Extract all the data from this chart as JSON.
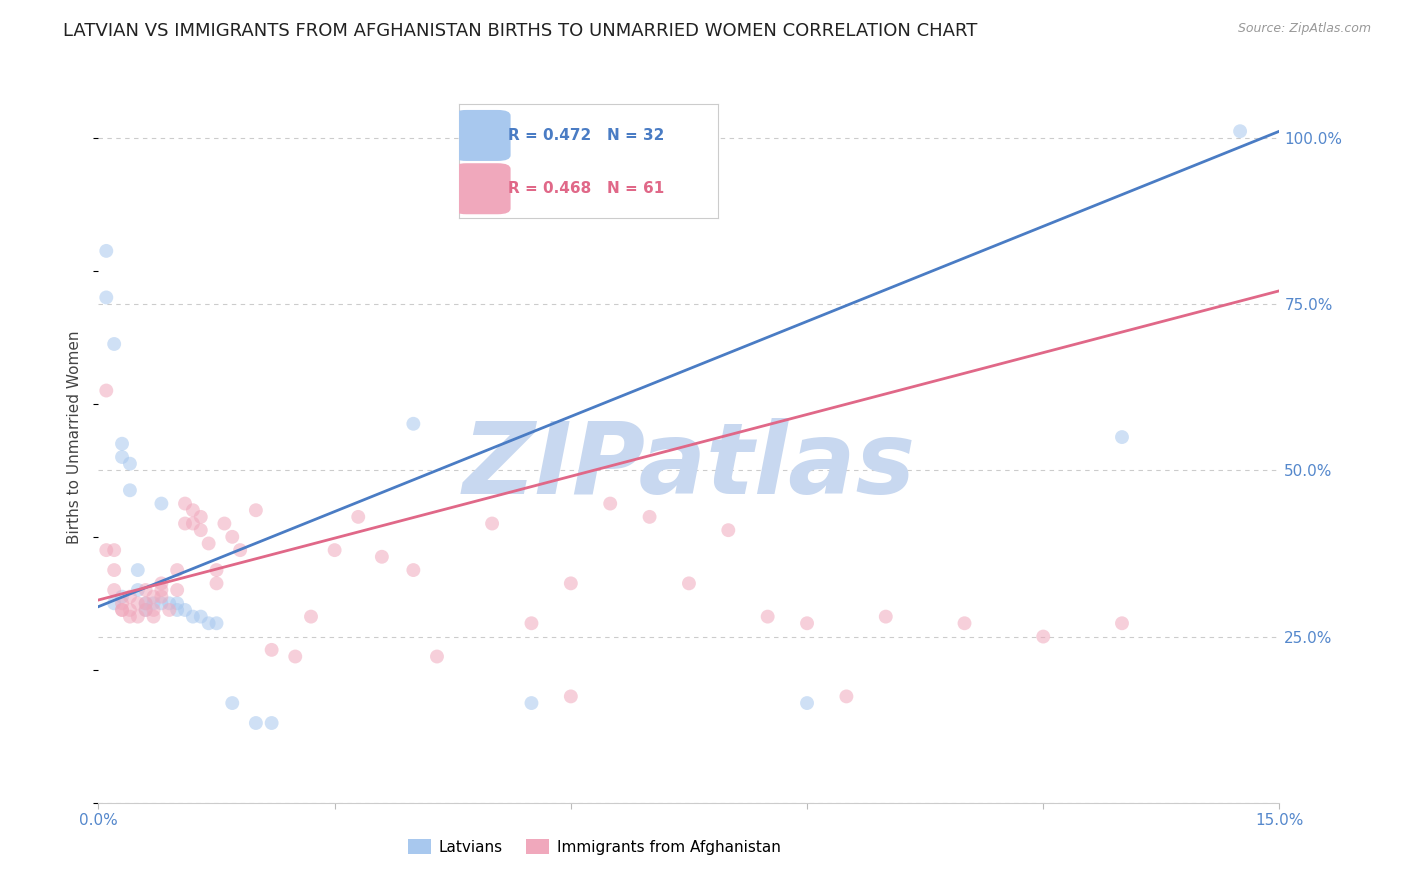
{
  "title": "LATVIAN VS IMMIGRANTS FROM AFGHANISTAN BIRTHS TO UNMARRIED WOMEN CORRELATION CHART",
  "source": "Source: ZipAtlas.com",
  "ylabel": "Births to Unmarried Women",
  "xlim": [
    0.0,
    0.15
  ],
  "ylim": [
    0.0,
    1.1
  ],
  "yticks": [
    0.0,
    0.25,
    0.5,
    0.75,
    1.0
  ],
  "ytick_labels": [
    "",
    "25.0%",
    "50.0%",
    "75.0%",
    "100.0%"
  ],
  "xticks": [
    0.0,
    0.03,
    0.06,
    0.09,
    0.12,
    0.15
  ],
  "xtick_labels": [
    "0.0%",
    "",
    "",
    "",
    "",
    "15.0%"
  ],
  "blue_R": 0.472,
  "blue_N": 32,
  "pink_R": 0.468,
  "pink_N": 61,
  "blue_color": "#A8C8EE",
  "pink_color": "#F0A8BC",
  "blue_line_color": "#4A7CC4",
  "pink_line_color": "#E06888",
  "watermark": "ZIPatlas",
  "watermark_color": "#C8D8F0",
  "legend_label_blue": "Latvians",
  "legend_label_pink": "Immigrants from Afghanistan",
  "blue_points_x": [
    0.001,
    0.001,
    0.002,
    0.003,
    0.003,
    0.004,
    0.005,
    0.005,
    0.006,
    0.007,
    0.008,
    0.009,
    0.01,
    0.01,
    0.011,
    0.012,
    0.013,
    0.014,
    0.015,
    0.017,
    0.02,
    0.022,
    0.04,
    0.055,
    0.09,
    0.13,
    0.145,
    0.002,
    0.003,
    0.004,
    0.006,
    0.008
  ],
  "blue_points_y": [
    0.83,
    0.76,
    0.69,
    0.54,
    0.52,
    0.47,
    0.35,
    0.32,
    0.3,
    0.3,
    0.3,
    0.3,
    0.3,
    0.29,
    0.29,
    0.28,
    0.28,
    0.27,
    0.27,
    0.15,
    0.12,
    0.12,
    0.57,
    0.15,
    0.15,
    0.55,
    1.01,
    0.3,
    0.31,
    0.51,
    0.29,
    0.45
  ],
  "pink_points_x": [
    0.001,
    0.001,
    0.002,
    0.002,
    0.003,
    0.003,
    0.004,
    0.004,
    0.005,
    0.005,
    0.006,
    0.006,
    0.007,
    0.007,
    0.008,
    0.008,
    0.009,
    0.01,
    0.01,
    0.011,
    0.011,
    0.012,
    0.012,
    0.013,
    0.013,
    0.014,
    0.015,
    0.015,
    0.016,
    0.017,
    0.018,
    0.02,
    0.022,
    0.025,
    0.027,
    0.03,
    0.033,
    0.036,
    0.04,
    0.043,
    0.05,
    0.055,
    0.06,
    0.065,
    0.07,
    0.075,
    0.08,
    0.085,
    0.09,
    0.095,
    0.1,
    0.11,
    0.12,
    0.13,
    0.002,
    0.003,
    0.004,
    0.006,
    0.007,
    0.008,
    0.06
  ],
  "pink_points_y": [
    0.62,
    0.38,
    0.35,
    0.32,
    0.3,
    0.29,
    0.29,
    0.28,
    0.3,
    0.28,
    0.32,
    0.3,
    0.31,
    0.29,
    0.33,
    0.31,
    0.29,
    0.35,
    0.32,
    0.45,
    0.42,
    0.44,
    0.42,
    0.43,
    0.41,
    0.39,
    0.35,
    0.33,
    0.42,
    0.4,
    0.38,
    0.44,
    0.23,
    0.22,
    0.28,
    0.38,
    0.43,
    0.37,
    0.35,
    0.22,
    0.42,
    0.27,
    0.33,
    0.45,
    0.43,
    0.33,
    0.41,
    0.28,
    0.27,
    0.16,
    0.28,
    0.27,
    0.25,
    0.27,
    0.38,
    0.29,
    0.31,
    0.29,
    0.28,
    0.32,
    0.16
  ],
  "blue_line_x": [
    0.0,
    0.15
  ],
  "blue_line_y": [
    0.295,
    1.01
  ],
  "pink_line_x": [
    0.0,
    0.15
  ],
  "pink_line_y": [
    0.305,
    0.77
  ],
  "background_color": "#FFFFFF",
  "grid_color": "#CCCCCC",
  "tick_color": "#5588CC",
  "title_fontsize": 13,
  "axis_label_fontsize": 11,
  "tick_fontsize": 11,
  "marker_size": 100,
  "marker_alpha": 0.55
}
